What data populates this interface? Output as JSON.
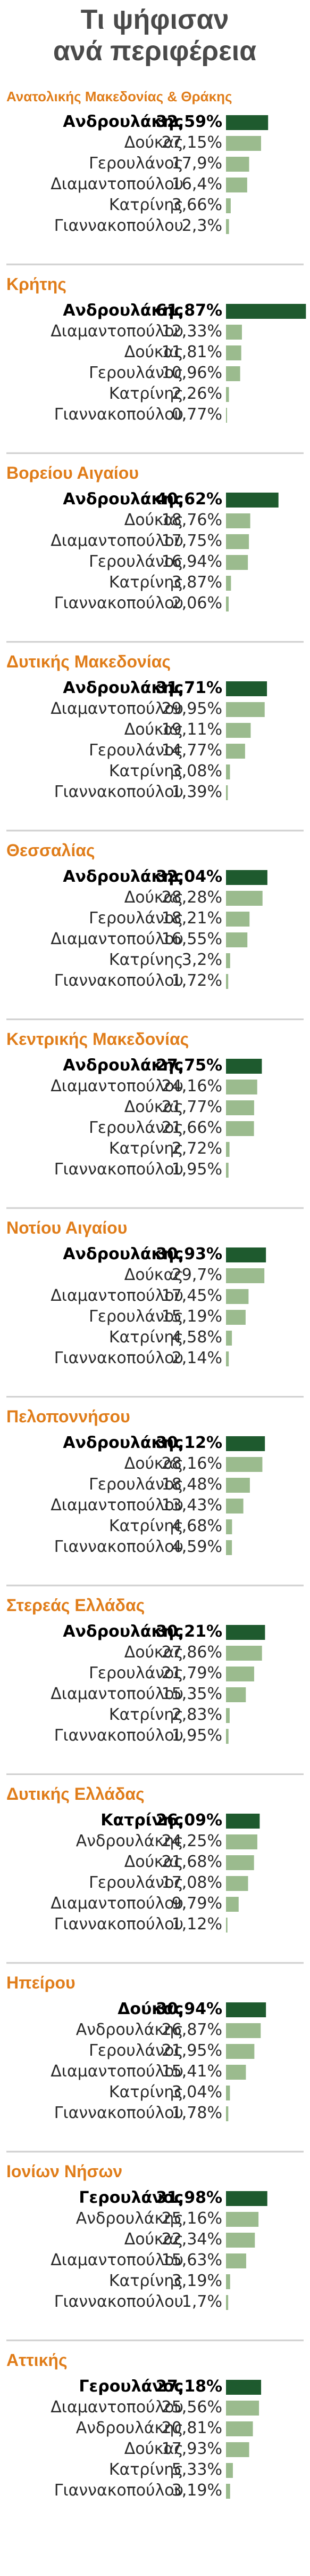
{
  "chart_data": {
    "type": "bar",
    "title": [
      "Τι ψήφισαν",
      "ανά περιφέρεια"
    ],
    "colors": {
      "leader": "#1e5a2e",
      "other": "#9bbb8e",
      "region_title": "#e07d1a",
      "title": "#4a4a4a"
    },
    "regions": [
      {
        "name": "Ανατολικής Μακεδονίας & Θράκης",
        "rows": [
          {
            "label": "Ανδρουλάκης",
            "value": 32.59,
            "text": "32,59%"
          },
          {
            "label": "Δούκας",
            "value": 27.15,
            "text": "27,15%"
          },
          {
            "label": "Γερουλάνος",
            "value": 17.9,
            "text": "17,9%"
          },
          {
            "label": "Διαμαντοπούλου",
            "value": 16.4,
            "text": "16,4%"
          },
          {
            "label": "Κατρίνης",
            "value": 3.66,
            "text": "3,66%"
          },
          {
            "label": "Γιαννακοπούλου",
            "value": 2.3,
            "text": "2,3%"
          }
        ]
      },
      {
        "name": "Κρήτης",
        "rows": [
          {
            "label": "Ανδρουλάκης",
            "value": 61.87,
            "text": "61,87%"
          },
          {
            "label": "Διαμαντοπούλου",
            "value": 12.33,
            "text": "12,33%"
          },
          {
            "label": "Δούκας",
            "value": 11.81,
            "text": "11,81%"
          },
          {
            "label": "Γερουλάνος",
            "value": 10.96,
            "text": "10,96%"
          },
          {
            "label": "Κατρίνης",
            "value": 2.26,
            "text": "2,26%"
          },
          {
            "label": "Γιαννακοπούλου",
            "value": 0.77,
            "text": "0,77%"
          }
        ]
      },
      {
        "name": "Βορείου Αιγαίου",
        "rows": [
          {
            "label": "Ανδρουλάκης",
            "value": 40.62,
            "text": "40,62%"
          },
          {
            "label": "Δούκας",
            "value": 18.76,
            "text": "18,76%"
          },
          {
            "label": "Διαμαντοπούλου",
            "value": 17.75,
            "text": "17,75%"
          },
          {
            "label": "Γερουλάνος",
            "value": 16.94,
            "text": "16,94%"
          },
          {
            "label": "Κατρίνης",
            "value": 3.87,
            "text": "3,87%"
          },
          {
            "label": "Γιαννακοπούλου",
            "value": 2.06,
            "text": "2,06%"
          }
        ]
      },
      {
        "name": "Δυτικής Μακεδονίας",
        "rows": [
          {
            "label": "Ανδρουλάκης",
            "value": 31.71,
            "text": "31,71%"
          },
          {
            "label": "Διαμαντοπούλου",
            "value": 29.95,
            "text": "29,95%"
          },
          {
            "label": "Δούκας",
            "value": 19.11,
            "text": "19,11%"
          },
          {
            "label": "Γερουλάνος",
            "value": 14.77,
            "text": "14,77%"
          },
          {
            "label": "Κατρίνης",
            "value": 3.08,
            "text": "3,08%"
          },
          {
            "label": "Γιαννακοπούλου",
            "value": 1.39,
            "text": "1,39%"
          }
        ]
      },
      {
        "name": "Θεσσαλίας",
        "rows": [
          {
            "label": "Ανδρουλάκης",
            "value": 32.04,
            "text": "32,04%"
          },
          {
            "label": "Δούκας",
            "value": 28.28,
            "text": "28,28%"
          },
          {
            "label": "Γερουλάνος",
            "value": 18.21,
            "text": "18,21%"
          },
          {
            "label": "Διαμαντοπούλου",
            "value": 16.55,
            "text": "16,55%"
          },
          {
            "label": "Κατρίνης",
            "value": 3.2,
            "text": "3,2%"
          },
          {
            "label": "Γιαννακοπούλου",
            "value": 1.72,
            "text": "1,72%"
          }
        ]
      },
      {
        "name": "Κεντρικής Μακεδονίας",
        "rows": [
          {
            "label": "Ανδρουλάκης",
            "value": 27.75,
            "text": "27,75%"
          },
          {
            "label": "Διαμαντοπούλου",
            "value": 24.16,
            "text": "24,16%"
          },
          {
            "label": "Δούκας",
            "value": 21.77,
            "text": "21,77%"
          },
          {
            "label": "Γερουλάνος",
            "value": 21.66,
            "text": "21,66%"
          },
          {
            "label": "Κατρίνης",
            "value": 2.72,
            "text": "2,72%"
          },
          {
            "label": "Γιαννακοπούλου",
            "value": 1.95,
            "text": "1,95%"
          }
        ]
      },
      {
        "name": "Νοτίου Αιγαίου",
        "rows": [
          {
            "label": "Ανδρουλάκης",
            "value": 30.93,
            "text": "30,93%"
          },
          {
            "label": "Δούκας",
            "value": 29.7,
            "text": "29,7%"
          },
          {
            "label": "Διαμαντοπούλου",
            "value": 17.45,
            "text": "17,45%"
          },
          {
            "label": "Γερουλάνος",
            "value": 15.19,
            "text": "15,19%"
          },
          {
            "label": "Κατρίνης",
            "value": 4.58,
            "text": "4,58%"
          },
          {
            "label": "Γιαννακοπούλου",
            "value": 2.14,
            "text": "2,14%"
          }
        ]
      },
      {
        "name": "Πελοποννήσου",
        "rows": [
          {
            "label": "Ανδρουλάκης",
            "value": 30.12,
            "text": "30,12%"
          },
          {
            "label": "Δούκας",
            "value": 28.16,
            "text": "28,16%"
          },
          {
            "label": "Γερουλάνος",
            "value": 18.48,
            "text": "18,48%"
          },
          {
            "label": "Διαμαντοπούλου",
            "value": 13.43,
            "text": "13,43%"
          },
          {
            "label": "Κατρίνης",
            "value": 4.68,
            "text": "4,68%"
          },
          {
            "label": "Γιαννακοπούλου",
            "value": 4.59,
            "text": "4,59%"
          }
        ]
      },
      {
        "name": "Στερεάς Ελλάδας",
        "rows": [
          {
            "label": "Ανδρουλάκης",
            "value": 30.21,
            "text": "30,21%"
          },
          {
            "label": "Δούκας",
            "value": 27.86,
            "text": "27,86%"
          },
          {
            "label": "Γερουλάνος",
            "value": 21.79,
            "text": "21,79%"
          },
          {
            "label": "Διαμαντοπούλου",
            "value": 15.35,
            "text": "15,35%"
          },
          {
            "label": "Κατρίνης",
            "value": 2.83,
            "text": "2,83%"
          },
          {
            "label": "Γιαννακοπούλου",
            "value": 1.95,
            "text": "1,95%"
          }
        ]
      },
      {
        "name": "Δυτικής Ελλάδας",
        "rows": [
          {
            "label": "Κατρίνης",
            "value": 26.09,
            "text": "26,09%"
          },
          {
            "label": "Ανδρουλάκης",
            "value": 24.25,
            "text": "24,25%"
          },
          {
            "label": "Δούκας",
            "value": 21.68,
            "text": "21,68%"
          },
          {
            "label": "Γερουλάνος",
            "value": 17.08,
            "text": "17,08%"
          },
          {
            "label": "Διαμαντοπούλου",
            "value": 9.79,
            "text": "9,79%"
          },
          {
            "label": "Γιαννακοπούλου",
            "value": 1.12,
            "text": "1,12%"
          }
        ]
      },
      {
        "name": "Ηπείρου",
        "rows": [
          {
            "label": "Δούκας",
            "value": 30.94,
            "text": "30,94%"
          },
          {
            "label": "Ανδρουλάκης",
            "value": 26.87,
            "text": "26,87%"
          },
          {
            "label": "Γερουλάνος",
            "value": 21.95,
            "text": "21,95%"
          },
          {
            "label": "Διαμαντοπούλου",
            "value": 15.41,
            "text": "15,41%"
          },
          {
            "label": "Κατρίνης",
            "value": 3.04,
            "text": "3,04%"
          },
          {
            "label": "Γιαννακοπούλου",
            "value": 1.78,
            "text": "1,78%"
          }
        ]
      },
      {
        "name": "Ιονίων Νήσων",
        "rows": [
          {
            "label": "Γερουλάνος",
            "value": 31.98,
            "text": "31,98%"
          },
          {
            "label": "Ανδρουλάκης",
            "value": 25.16,
            "text": "25,16%"
          },
          {
            "label": "Δούκας",
            "value": 22.34,
            "text": "22,34%"
          },
          {
            "label": "Διαμαντοπούλου",
            "value": 15.63,
            "text": "15,63%"
          },
          {
            "label": "Κατρίνης",
            "value": 3.19,
            "text": "3,19%"
          },
          {
            "label": "Γιαννακοπούλου",
            "value": 1.7,
            "text": "1,7%"
          }
        ]
      },
      {
        "name": "Αττικής",
        "rows": [
          {
            "label": "Γερουλάνος",
            "value": 27.18,
            "text": "27,18%"
          },
          {
            "label": "Διαμαντοπούλου",
            "value": 25.56,
            "text": "25,56%"
          },
          {
            "label": "Ανδρουλάκης",
            "value": 20.81,
            "text": "20,81%"
          },
          {
            "label": "Δούκας",
            "value": 17.93,
            "text": "17,93%"
          },
          {
            "label": "Κατρίνης",
            "value": 5.33,
            "text": "5,33%"
          },
          {
            "label": "Γιαννακοπούλου",
            "value": 3.19,
            "text": "3,19%"
          }
        ]
      }
    ]
  }
}
